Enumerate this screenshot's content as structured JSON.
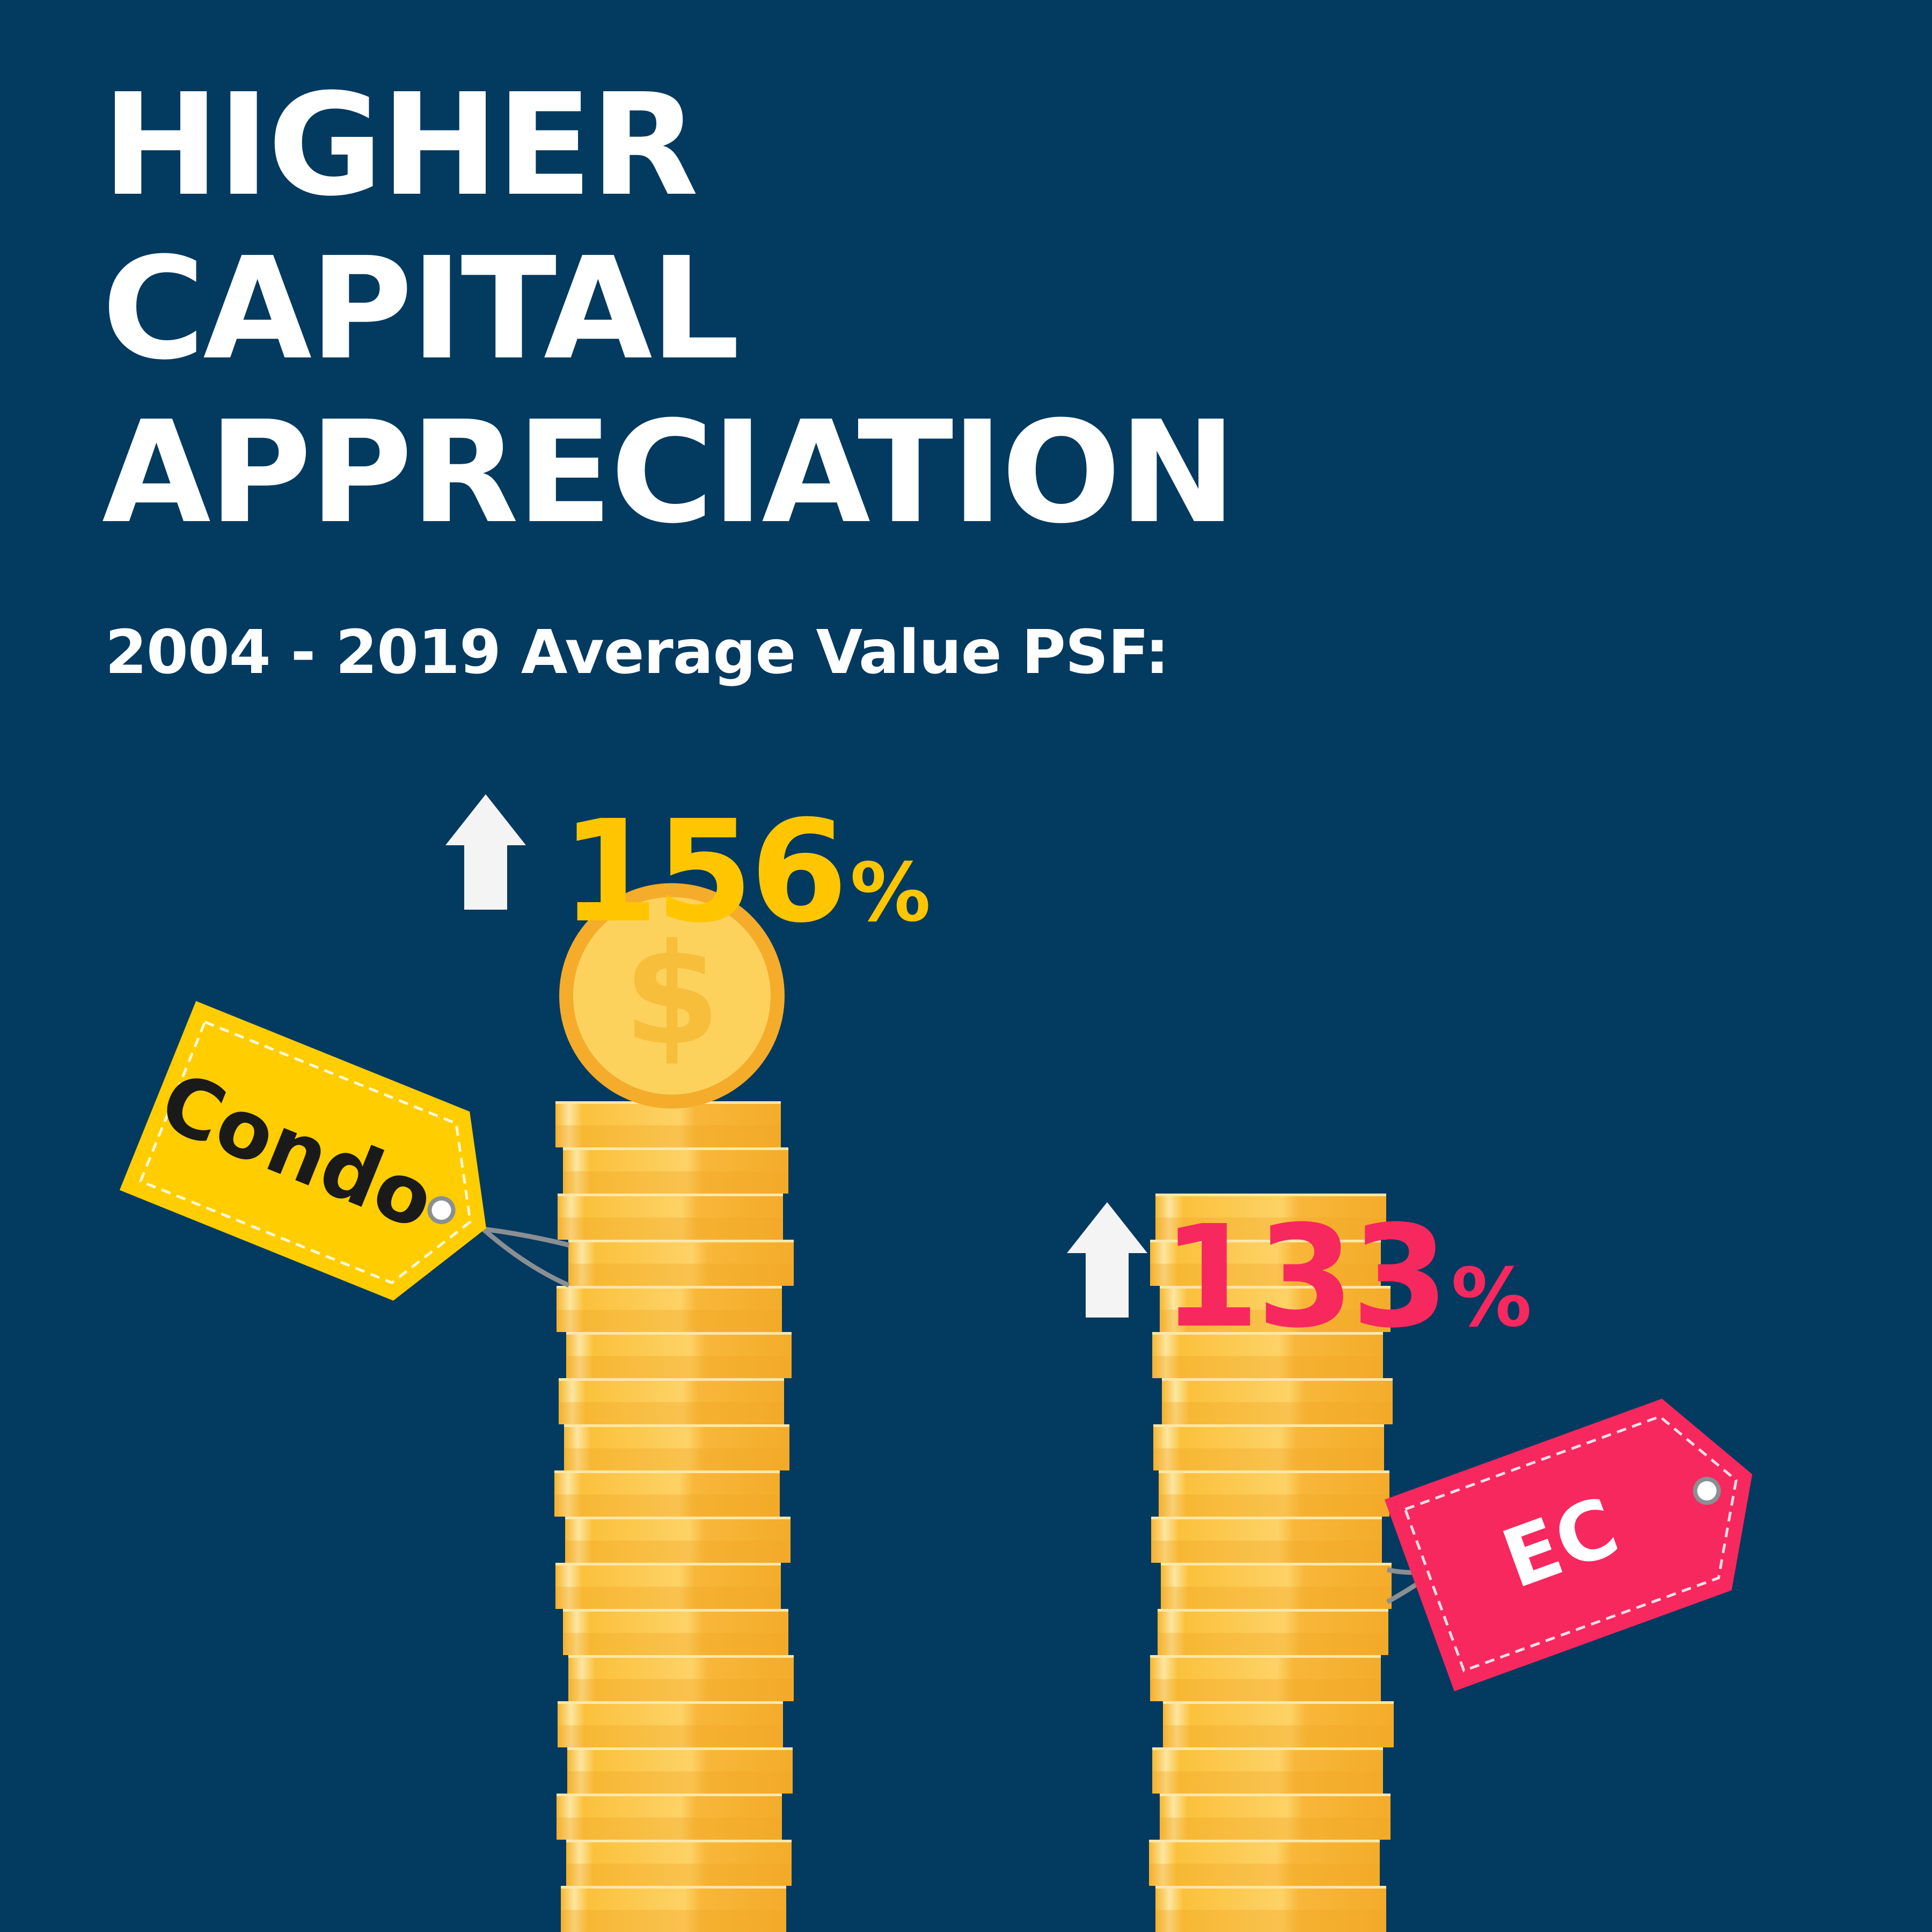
{
  "header": {
    "title_lines": [
      "HIGHER",
      "CAPITAL",
      "APPRECIATION"
    ],
    "subtitle": "2004 - 2019 Average Value PSF:"
  },
  "chart_data": {
    "type": "bar",
    "categories": [
      "Condo",
      "EC"
    ],
    "series": [
      {
        "values": [
          156,
          133
        ]
      }
    ],
    "value_labels": [
      "156",
      "133"
    ],
    "value_unit": "%",
    "colors": {
      "background": "#023a60",
      "condo_tag": "#ffcd00",
      "ec_tag": "#f7285e",
      "condo_value": "#ffc600",
      "ec_value": "#f7285e",
      "coin": "#fbc13c",
      "arrow": "#f4f4f4"
    },
    "icons": [
      "up-arrow-icon",
      "dollar-coin-icon",
      "price-tag-icon"
    ]
  }
}
